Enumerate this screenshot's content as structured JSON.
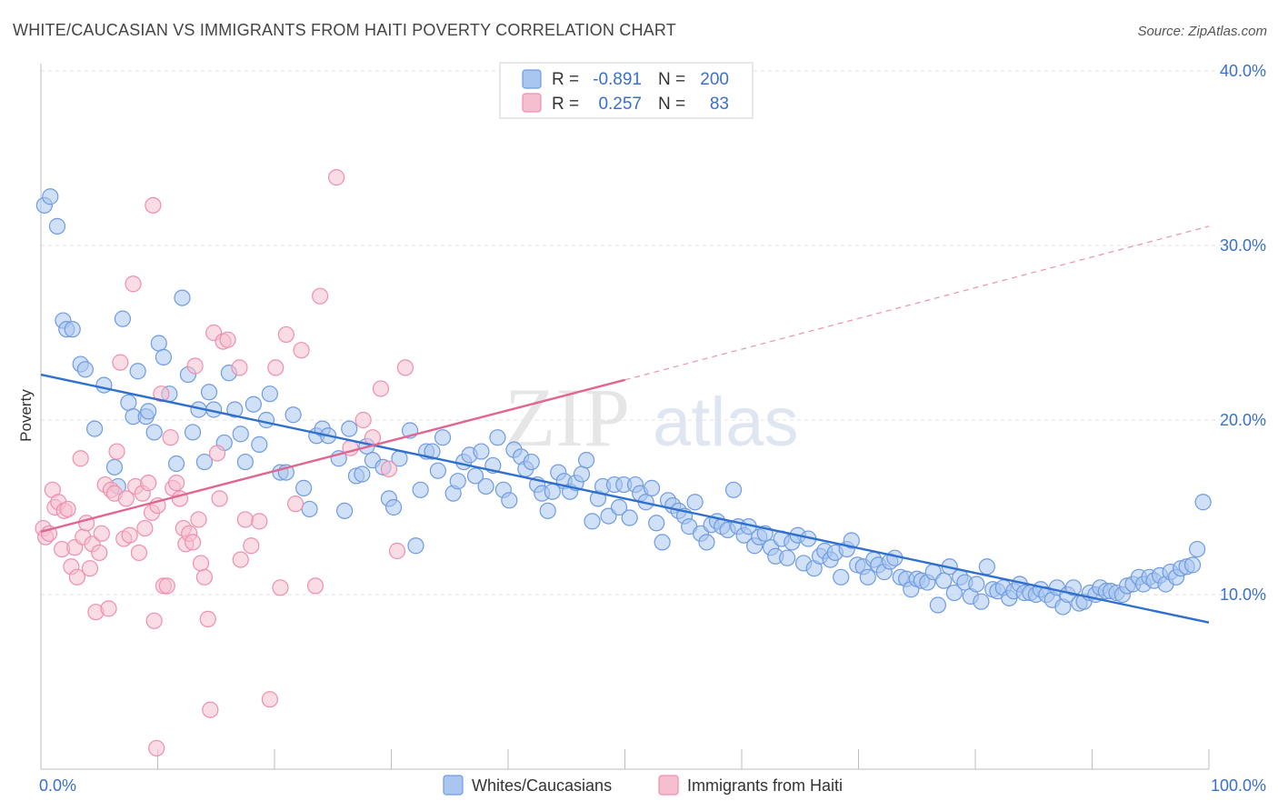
{
  "title": "WHITE/CAUCASIAN VS IMMIGRANTS FROM HAITI POVERTY CORRELATION CHART",
  "source": "Source: ZipAtlas.com",
  "watermark": {
    "zip": "ZIP",
    "atlas": "atlas"
  },
  "colors": {
    "blue_fill": "#a9c6f0",
    "blue_stroke": "#6f9be0",
    "blue_line": "#2f6fce",
    "pink_fill": "#f6bfd0",
    "pink_stroke": "#ee8fae",
    "pink_line": "#e06690",
    "accent_text": "#3a70c9"
  },
  "legend": {
    "rows": [
      {
        "r_label": "R =",
        "r_value": "-0.891",
        "n_label": "N =",
        "n_value": "200"
      },
      {
        "r_label": "R =",
        "r_value": "0.257",
        "n_label": "N =",
        "n_value": "83"
      }
    ]
  },
  "chart_data": {
    "type": "scatter",
    "ylabel": "Poverty",
    "xlabel": "",
    "xlim": [
      0,
      100
    ],
    "ylim": [
      0,
      40
    ],
    "x_tick_labels": [
      "0.0%",
      "100.0%"
    ],
    "y_ticks": [
      10,
      20,
      30,
      40
    ],
    "y_tick_labels": [
      "10.0%",
      "20.0%",
      "30.0%",
      "40.0%"
    ],
    "grid": true,
    "legend_position": "top-center",
    "series": [
      {
        "name": "Whites/Caucasians",
        "color": "blue",
        "trend": {
          "x0": 0,
          "y0": 22.6,
          "x1": 100,
          "y1": 8.4,
          "dashed_to": null
        },
        "points": [
          [
            0.3,
            32.3
          ],
          [
            0.8,
            32.8
          ],
          [
            1.4,
            31.1
          ],
          [
            1.9,
            25.7
          ],
          [
            2.2,
            25.2
          ],
          [
            2.7,
            25.2
          ],
          [
            3.4,
            23.2
          ],
          [
            3.8,
            22.9
          ],
          [
            5.4,
            22.0
          ],
          [
            4.6,
            19.5
          ],
          [
            6.3,
            17.3
          ],
          [
            6.6,
            16.2
          ],
          [
            7.0,
            25.8
          ],
          [
            7.5,
            21.0
          ],
          [
            7.9,
            20.2
          ],
          [
            8.3,
            22.8
          ],
          [
            9.0,
            20.2
          ],
          [
            9.2,
            20.5
          ],
          [
            9.7,
            19.3
          ],
          [
            10.1,
            24.4
          ],
          [
            10.5,
            23.6
          ],
          [
            11.0,
            21.5
          ],
          [
            11.6,
            17.5
          ],
          [
            12.1,
            27.0
          ],
          [
            12.6,
            22.6
          ],
          [
            13.0,
            19.3
          ],
          [
            13.5,
            20.6
          ],
          [
            14.0,
            17.6
          ],
          [
            14.4,
            21.6
          ],
          [
            14.8,
            20.6
          ],
          [
            15.7,
            18.7
          ],
          [
            16.1,
            22.7
          ],
          [
            16.6,
            20.6
          ],
          [
            17.1,
            19.2
          ],
          [
            17.5,
            17.6
          ],
          [
            18.2,
            20.9
          ],
          [
            18.7,
            18.6
          ],
          [
            19.3,
            20.0
          ],
          [
            19.6,
            21.5
          ],
          [
            20.5,
            17.0
          ],
          [
            21.0,
            17.0
          ],
          [
            21.6,
            20.3
          ],
          [
            22.5,
            16.1
          ],
          [
            23.0,
            14.9
          ],
          [
            23.6,
            19.1
          ],
          [
            24.1,
            19.5
          ],
          [
            24.6,
            19.1
          ],
          [
            25.5,
            17.8
          ],
          [
            26.0,
            14.8
          ],
          [
            26.4,
            19.5
          ],
          [
            27.0,
            16.8
          ],
          [
            27.5,
            16.9
          ],
          [
            27.9,
            18.5
          ],
          [
            28.4,
            17.7
          ],
          [
            29.3,
            17.3
          ],
          [
            29.8,
            15.5
          ],
          [
            30.2,
            15.0
          ],
          [
            30.7,
            17.8
          ],
          [
            31.6,
            19.4
          ],
          [
            32.1,
            12.8
          ],
          [
            32.5,
            16.0
          ],
          [
            33.0,
            18.2
          ],
          [
            33.5,
            18.2
          ],
          [
            34.0,
            17.1
          ],
          [
            34.4,
            19.0
          ],
          [
            35.3,
            15.8
          ],
          [
            35.7,
            16.5
          ],
          [
            36.2,
            17.6
          ],
          [
            36.7,
            18.0
          ],
          [
            37.2,
            16.8
          ],
          [
            37.7,
            18.2
          ],
          [
            38.1,
            16.2
          ],
          [
            38.7,
            17.4
          ],
          [
            39.1,
            19.0
          ],
          [
            39.6,
            16.0
          ],
          [
            40.1,
            15.4
          ],
          [
            40.5,
            18.3
          ],
          [
            41.1,
            17.9
          ],
          [
            41.5,
            17.2
          ],
          [
            42.0,
            17.6
          ],
          [
            42.5,
            16.3
          ],
          [
            42.9,
            15.8
          ],
          [
            43.4,
            14.8
          ],
          [
            43.8,
            15.9
          ],
          [
            44.3,
            17.0
          ],
          [
            44.8,
            16.5
          ],
          [
            45.3,
            15.9
          ],
          [
            45.8,
            16.4
          ],
          [
            46.3,
            16.9
          ],
          [
            46.7,
            17.7
          ],
          [
            47.2,
            14.2
          ],
          [
            47.7,
            15.5
          ],
          [
            48.1,
            16.2
          ],
          [
            48.6,
            14.5
          ],
          [
            49.1,
            16.3
          ],
          [
            49.5,
            15.0
          ],
          [
            49.9,
            16.3
          ],
          [
            50.4,
            14.4
          ],
          [
            50.9,
            16.3
          ],
          [
            51.3,
            15.8
          ],
          [
            51.8,
            15.3
          ],
          [
            52.3,
            16.1
          ],
          [
            52.7,
            14.1
          ],
          [
            53.2,
            13.0
          ],
          [
            53.7,
            15.4
          ],
          [
            54.1,
            15.1
          ],
          [
            54.6,
            14.8
          ],
          [
            55.1,
            14.5
          ],
          [
            55.5,
            13.9
          ],
          [
            56.0,
            15.3
          ],
          [
            56.5,
            13.5
          ],
          [
            57.0,
            13.0
          ],
          [
            57.4,
            14.0
          ],
          [
            57.9,
            14.2
          ],
          [
            58.3,
            13.9
          ],
          [
            58.8,
            13.7
          ],
          [
            59.3,
            16.0
          ],
          [
            59.7,
            13.9
          ],
          [
            60.2,
            13.4
          ],
          [
            60.6,
            13.9
          ],
          [
            61.1,
            12.8
          ],
          [
            61.5,
            13.3
          ],
          [
            62.0,
            13.5
          ],
          [
            62.5,
            12.7
          ],
          [
            62.9,
            12.2
          ],
          [
            63.4,
            13.2
          ],
          [
            63.9,
            12.1
          ],
          [
            64.3,
            13.0
          ],
          [
            64.8,
            13.4
          ],
          [
            65.3,
            11.8
          ],
          [
            65.7,
            13.2
          ],
          [
            66.2,
            11.5
          ],
          [
            66.7,
            12.2
          ],
          [
            67.1,
            12.5
          ],
          [
            67.6,
            12.0
          ],
          [
            68.0,
            12.4
          ],
          [
            68.5,
            11.0
          ],
          [
            69.0,
            12.6
          ],
          [
            69.4,
            13.1
          ],
          [
            69.9,
            11.7
          ],
          [
            70.4,
            11.6
          ],
          [
            70.8,
            11.0
          ],
          [
            71.3,
            12.0
          ],
          [
            71.7,
            11.7
          ],
          [
            72.2,
            11.3
          ],
          [
            72.7,
            11.9
          ],
          [
            73.1,
            12.1
          ],
          [
            73.6,
            11.0
          ],
          [
            74.1,
            10.9
          ],
          [
            74.5,
            10.3
          ],
          [
            75.0,
            10.9
          ],
          [
            75.4,
            10.8
          ],
          [
            75.9,
            10.7
          ],
          [
            76.4,
            11.3
          ],
          [
            76.8,
            9.4
          ],
          [
            77.3,
            10.8
          ],
          [
            77.8,
            11.6
          ],
          [
            78.2,
            10.1
          ],
          [
            78.7,
            11.0
          ],
          [
            79.1,
            10.7
          ],
          [
            79.6,
            9.9
          ],
          [
            80.1,
            10.6
          ],
          [
            80.5,
            9.6
          ],
          [
            81.0,
            11.6
          ],
          [
            81.5,
            10.3
          ],
          [
            81.9,
            10.2
          ],
          [
            82.4,
            10.4
          ],
          [
            82.9,
            9.8
          ],
          [
            83.3,
            10.2
          ],
          [
            83.8,
            10.6
          ],
          [
            84.2,
            10.1
          ],
          [
            84.7,
            10.1
          ],
          [
            85.2,
            10.0
          ],
          [
            85.6,
            10.3
          ],
          [
            86.1,
            10.0
          ],
          [
            86.6,
            9.7
          ],
          [
            87.0,
            10.4
          ],
          [
            87.5,
            9.3
          ],
          [
            87.9,
            10.0
          ],
          [
            88.4,
            10.4
          ],
          [
            88.9,
            9.5
          ],
          [
            89.3,
            9.6
          ],
          [
            89.8,
            10.1
          ],
          [
            90.3,
            10.0
          ],
          [
            90.7,
            10.4
          ],
          [
            91.2,
            10.2
          ],
          [
            91.6,
            10.2
          ],
          [
            92.1,
            10.1
          ],
          [
            92.6,
            10.0
          ],
          [
            93.0,
            10.5
          ],
          [
            93.5,
            10.6
          ],
          [
            94.0,
            11.0
          ],
          [
            94.4,
            10.6
          ],
          [
            94.9,
            11.0
          ],
          [
            95.3,
            10.8
          ],
          [
            95.8,
            11.1
          ],
          [
            96.3,
            10.6
          ],
          [
            96.7,
            11.3
          ],
          [
            97.2,
            11.0
          ],
          [
            97.6,
            11.5
          ],
          [
            98.1,
            11.6
          ],
          [
            98.6,
            11.7
          ],
          [
            99.0,
            12.6
          ],
          [
            99.5,
            15.3
          ]
        ]
      },
      {
        "name": "Immigrants from Haiti",
        "color": "pink",
        "trend": {
          "x0": 0,
          "y0": 13.6,
          "x1": 50,
          "y1": 22.3,
          "dashed_x1": 100,
          "dashed_y1": 31.1
        },
        "points": [
          [
            0.2,
            13.8
          ],
          [
            0.4,
            13.3
          ],
          [
            0.7,
            13.5
          ],
          [
            1.0,
            16.0
          ],
          [
            1.2,
            15.0
          ],
          [
            1.5,
            15.3
          ],
          [
            1.8,
            12.6
          ],
          [
            2.0,
            14.8
          ],
          [
            2.3,
            14.9
          ],
          [
            2.6,
            11.6
          ],
          [
            2.9,
            12.7
          ],
          [
            3.1,
            11.0
          ],
          [
            3.4,
            17.8
          ],
          [
            3.6,
            13.3
          ],
          [
            3.9,
            14.1
          ],
          [
            4.2,
            11.5
          ],
          [
            4.4,
            12.9
          ],
          [
            4.7,
            9.0
          ],
          [
            5.0,
            12.4
          ],
          [
            5.2,
            13.5
          ],
          [
            5.5,
            16.3
          ],
          [
            5.8,
            9.2
          ],
          [
            6.0,
            16.0
          ],
          [
            6.3,
            15.8
          ],
          [
            6.5,
            18.2
          ],
          [
            6.8,
            23.3
          ],
          [
            7.1,
            13.2
          ],
          [
            7.3,
            15.5
          ],
          [
            7.6,
            13.4
          ],
          [
            7.9,
            27.8
          ],
          [
            8.1,
            16.2
          ],
          [
            8.4,
            12.4
          ],
          [
            8.7,
            15.8
          ],
          [
            8.9,
            13.8
          ],
          [
            9.2,
            16.4
          ],
          [
            9.5,
            14.7
          ],
          [
            9.7,
            8.5
          ],
          [
            10.0,
            15.1
          ],
          [
            10.3,
            21.5
          ],
          [
            10.5,
            10.5
          ],
          [
            10.8,
            10.5
          ],
          [
            11.1,
            19.0
          ],
          [
            11.3,
            16.1
          ],
          [
            11.6,
            16.4
          ],
          [
            11.9,
            15.5
          ],
          [
            12.2,
            13.8
          ],
          [
            12.4,
            12.9
          ],
          [
            12.7,
            13.5
          ],
          [
            13.0,
            13.0
          ],
          [
            13.2,
            23.1
          ],
          [
            13.5,
            14.3
          ],
          [
            13.7,
            11.8
          ],
          [
            14.0,
            11.0
          ],
          [
            14.3,
            8.6
          ],
          [
            14.5,
            3.4
          ],
          [
            14.8,
            25.0
          ],
          [
            15.1,
            18.1
          ],
          [
            15.3,
            15.5
          ],
          [
            15.6,
            24.5
          ],
          [
            16.0,
            24.6
          ],
          [
            17.0,
            23.0
          ],
          [
            17.5,
            14.3
          ],
          [
            18.0,
            12.8
          ],
          [
            18.7,
            14.2
          ],
          [
            19.6,
            4.0
          ],
          [
            20.1,
            23.0
          ],
          [
            20.5,
            10.4
          ],
          [
            21.0,
            24.9
          ],
          [
            21.8,
            15.2
          ],
          [
            22.3,
            24.0
          ],
          [
            23.5,
            10.5
          ],
          [
            23.9,
            27.1
          ],
          [
            25.3,
            33.9
          ],
          [
            26.5,
            18.4
          ],
          [
            27.6,
            20.0
          ],
          [
            28.4,
            19.0
          ],
          [
            29.1,
            21.8
          ],
          [
            29.8,
            17.2
          ],
          [
            30.5,
            12.5
          ],
          [
            31.2,
            23.0
          ],
          [
            9.9,
            1.2
          ],
          [
            9.6,
            32.3
          ],
          [
            17.1,
            12.0
          ]
        ]
      }
    ]
  },
  "bottom_legend": {
    "items": [
      {
        "label": "Whites/Caucasians"
      },
      {
        "label": "Immigrants from Haiti"
      }
    ]
  }
}
